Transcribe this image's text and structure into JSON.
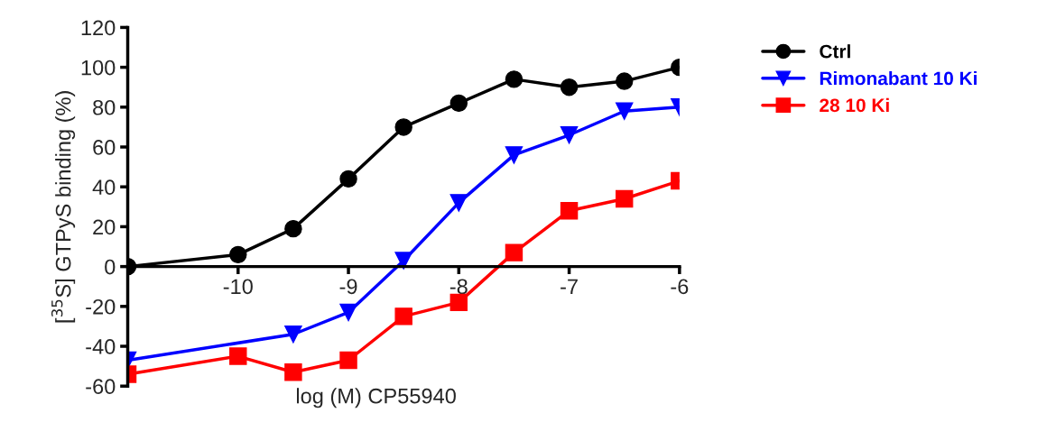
{
  "chart_data": {
    "type": "line",
    "xlabel": "log (M) CP55940",
    "ylabel": "[$^{35}$S] GTPyS binding (%)",
    "x": [
      -11,
      -10,
      -9.5,
      -9,
      -8.5,
      -8,
      -7.5,
      -7,
      -6.5,
      -6
    ],
    "series": [
      {
        "name": "Ctrl",
        "color": "#000000",
        "marker": "circle",
        "values": [
          0,
          6,
          19,
          44,
          70,
          82,
          94,
          90,
          93,
          100
        ]
      },
      {
        "name": "Rimonabant 10 Ki",
        "color": "#0000ff",
        "marker": "triangle",
        "values": [
          -47,
          null,
          -34,
          -23,
          3,
          32,
          56,
          66,
          78,
          80
        ]
      },
      {
        "name": "28 10 Ki",
        "color": "#ff0000",
        "marker": "square",
        "values": [
          -54,
          -45,
          -53,
          -47,
          -25,
          -18,
          7,
          28,
          34,
          43
        ]
      }
    ],
    "xlim": [
      -11,
      -6
    ],
    "xticks": [
      -10,
      -9,
      -8,
      -7,
      -6
    ],
    "ylim": [
      -60,
      120
    ],
    "yticks": [
      -60,
      -40,
      -20,
      0,
      20,
      40,
      60,
      80,
      100,
      120
    ],
    "grid": false,
    "legend": "top right",
    "line_style": "solid"
  }
}
